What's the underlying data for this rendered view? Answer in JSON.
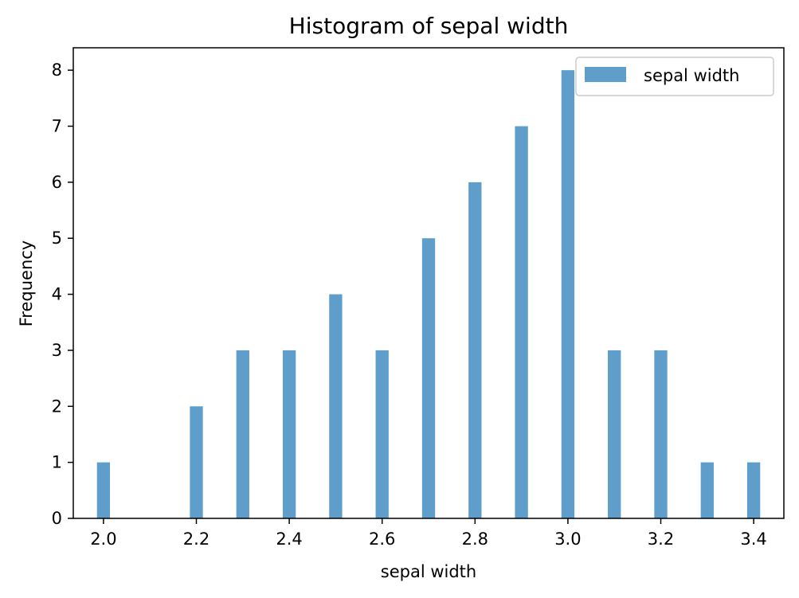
{
  "chart_data": {
    "type": "bar",
    "title": "Histogram of sepal width",
    "xlabel": "sepal width",
    "ylabel": "Frequency",
    "xlim": [
      1.935,
      3.465
    ],
    "ylim": [
      0,
      8.4
    ],
    "xticks": [
      "2.0",
      "2.2",
      "2.4",
      "2.6",
      "2.8",
      "3.0",
      "3.2",
      "3.4"
    ],
    "yticks": [
      "0",
      "1",
      "2",
      "3",
      "4",
      "5",
      "6",
      "7",
      "8"
    ],
    "bar_color": "#5f9ecb",
    "bar_width": 0.028,
    "legend": {
      "position": "top-right"
    },
    "series": [
      {
        "name": "sepal width",
        "x": [
          2.0,
          2.2,
          2.3,
          2.4,
          2.5,
          2.6,
          2.7,
          2.8,
          2.9,
          3.0,
          3.1,
          3.2,
          3.3,
          3.4
        ],
        "values": [
          1,
          2,
          3,
          3,
          4,
          3,
          5,
          6,
          7,
          8,
          3,
          3,
          1,
          1
        ]
      }
    ]
  }
}
